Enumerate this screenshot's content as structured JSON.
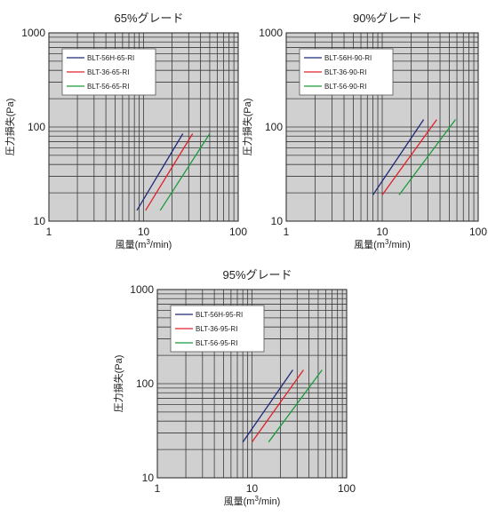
{
  "chart_data": [
    {
      "type": "line",
      "title": "65%グレード",
      "xlabel": "風量(m3/min)",
      "xlabel_parts": {
        "pre": "風量(m",
        "sup": "3",
        "post": "/min)"
      },
      "ylabel": "圧力損失(Pa)",
      "xscale": "log",
      "yscale": "log",
      "xlim": [
        1,
        100
      ],
      "ylim": [
        10,
        1000
      ],
      "xticks": [
        1,
        10,
        100
      ],
      "xtick_labels": [
        "1",
        "10",
        "100"
      ],
      "yticks": [
        10,
        100,
        1000
      ],
      "ytick_labels": [
        "10",
        "100",
        "1000"
      ],
      "grid": true,
      "legend_position": "top-left",
      "series": [
        {
          "name": "BLT-56H-65-RI",
          "color": "#1f2a7a",
          "x": [
            8.5,
            26
          ],
          "y": [
            13,
            85
          ]
        },
        {
          "name": "BLT-36-65-RI",
          "color": "#e0202a",
          "x": [
            10.5,
            33
          ],
          "y": [
            13,
            85
          ]
        },
        {
          "name": "BLT-56-65-RI",
          "color": "#1a9a3c",
          "x": [
            15,
            50
          ],
          "y": [
            13,
            85
          ]
        }
      ]
    },
    {
      "type": "line",
      "title": "90%グレード",
      "xlabel": "風量(m3/min)",
      "xlabel_parts": {
        "pre": "風量(m",
        "sup": "3",
        "post": "/min)"
      },
      "ylabel": "圧力損失(Pa)",
      "xscale": "log",
      "yscale": "log",
      "xlim": [
        1,
        100
      ],
      "ylim": [
        10,
        1000
      ],
      "xticks": [
        1,
        10,
        100
      ],
      "xtick_labels": [
        "1",
        "10",
        "100"
      ],
      "yticks": [
        10,
        100,
        1000
      ],
      "ytick_labels": [
        "10",
        "100",
        "1000"
      ],
      "grid": true,
      "legend_position": "top-left",
      "series": [
        {
          "name": "BLT-56H-90-RI",
          "color": "#1f2a7a",
          "x": [
            8,
            27
          ],
          "y": [
            19,
            120
          ]
        },
        {
          "name": "BLT-36-90-RI",
          "color": "#e0202a",
          "x": [
            10,
            37
          ],
          "y": [
            19,
            120
          ]
        },
        {
          "name": "BLT-56-90-RI",
          "color": "#1a9a3c",
          "x": [
            15,
            58
          ],
          "y": [
            19,
            120
          ]
        }
      ]
    },
    {
      "type": "line",
      "title": "95%グレード",
      "xlabel": "風量(m3/min)",
      "xlabel_parts": {
        "pre": "風量(m",
        "sup": "3",
        "post": "/min)"
      },
      "ylabel": "圧力損失(Pa)",
      "xscale": "log",
      "yscale": "log",
      "xlim": [
        1,
        100
      ],
      "ylim": [
        10,
        1000
      ],
      "xticks": [
        1,
        10,
        100
      ],
      "xtick_labels": [
        "1",
        "10",
        "100"
      ],
      "yticks": [
        10,
        100,
        1000
      ],
      "ytick_labels": [
        "10",
        "100",
        "1000"
      ],
      "grid": true,
      "legend_position": "top-left",
      "series": [
        {
          "name": "BLT-56H-95-RI",
          "color": "#1f2a7a",
          "x": [
            8,
            27
          ],
          "y": [
            24,
            140
          ]
        },
        {
          "name": "BLT-36-95-RI",
          "color": "#e0202a",
          "x": [
            10,
            35
          ],
          "y": [
            24,
            140
          ]
        },
        {
          "name": "BLT-56-95-RI",
          "color": "#1a9a3c",
          "x": [
            15,
            55
          ],
          "y": [
            24,
            140
          ]
        }
      ]
    }
  ]
}
